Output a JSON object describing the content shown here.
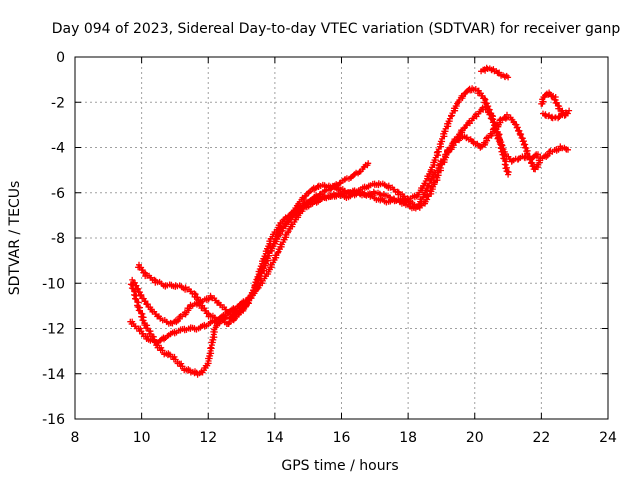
{
  "chart_data": {
    "type": "scatter",
    "title": "Day 094 of 2023, Sidereal Day-to-day VTEC variation (SDTVAR) for receiver ganp",
    "xlabel": "GPS time / hours",
    "ylabel": "SDTVAR / TECUs",
    "xlim": [
      8,
      24
    ],
    "ylim": [
      -16,
      0
    ],
    "xticks": [
      8,
      10,
      12,
      14,
      16,
      18,
      20,
      22,
      24
    ],
    "yticks": [
      0,
      -2,
      -4,
      -6,
      -8,
      -10,
      -12,
      -14,
      -16
    ],
    "grid": true,
    "marker": "+",
    "color": "#ff0000",
    "series": [
      {
        "points": [
          [
            9.75,
            -9.9
          ],
          [
            10.0,
            -10.6
          ],
          [
            10.3,
            -11.2
          ],
          [
            10.6,
            -11.6
          ],
          [
            10.9,
            -11.8
          ],
          [
            11.2,
            -11.5
          ],
          [
            11.5,
            -11.0
          ],
          [
            11.8,
            -10.8
          ],
          [
            12.1,
            -10.6
          ],
          [
            12.4,
            -11.0
          ],
          [
            12.7,
            -11.4
          ],
          [
            13.0,
            -11.0
          ],
          [
            13.3,
            -10.6
          ],
          [
            13.6,
            -9.6
          ],
          [
            13.9,
            -8.4
          ],
          [
            14.2,
            -7.6
          ],
          [
            14.5,
            -7.1
          ],
          [
            14.8,
            -6.7
          ],
          [
            15.1,
            -6.5
          ],
          [
            15.5,
            -6.2
          ],
          [
            15.8,
            -6.1
          ],
          [
            16.1,
            -6.0
          ],
          [
            16.4,
            -6.0
          ],
          [
            16.7,
            -6.1
          ],
          [
            17.0,
            -6.0
          ],
          [
            17.3,
            -6.1
          ],
          [
            17.6,
            -6.3
          ],
          [
            17.9,
            -6.5
          ],
          [
            18.2,
            -6.7
          ],
          [
            18.4,
            -6.6
          ],
          [
            18.6,
            -6.2
          ],
          [
            18.8,
            -5.6
          ],
          [
            19.0,
            -4.8
          ],
          [
            19.2,
            -4.2
          ],
          [
            19.4,
            -3.8
          ],
          [
            19.6,
            -3.5
          ],
          [
            19.8,
            -3.6
          ],
          [
            20.0,
            -3.8
          ],
          [
            20.2,
            -4.0
          ],
          [
            20.4,
            -3.6
          ],
          [
            20.6,
            -3.2
          ],
          [
            20.8,
            -2.8
          ],
          [
            21.0,
            -2.6
          ],
          [
            21.2,
            -2.9
          ],
          [
            21.4,
            -3.5
          ],
          [
            21.6,
            -4.3
          ],
          [
            21.8,
            -5.0
          ],
          [
            22.0,
            -4.5
          ],
          [
            22.3,
            -4.2
          ],
          [
            22.6,
            -4.0
          ],
          [
            22.8,
            -4.1
          ]
        ]
      },
      {
        "points": [
          [
            9.65,
            -11.7
          ],
          [
            9.9,
            -12.0
          ],
          [
            10.2,
            -12.5
          ],
          [
            10.5,
            -12.6
          ],
          [
            10.8,
            -12.3
          ],
          [
            11.1,
            -12.1
          ],
          [
            11.4,
            -12.0
          ],
          [
            11.7,
            -12.0
          ],
          [
            12.0,
            -11.8
          ],
          [
            12.3,
            -11.6
          ],
          [
            12.6,
            -11.3
          ],
          [
            12.9,
            -11.0
          ],
          [
            13.2,
            -10.7
          ],
          [
            13.5,
            -10.2
          ],
          [
            13.8,
            -9.5
          ],
          [
            14.1,
            -8.6
          ],
          [
            14.4,
            -7.7
          ],
          [
            14.7,
            -7.0
          ],
          [
            15.0,
            -6.4
          ],
          [
            15.3,
            -6.2
          ],
          [
            15.6,
            -6.2
          ],
          [
            15.9,
            -6.1
          ],
          [
            16.2,
            -6.2
          ],
          [
            16.5,
            -6.0
          ],
          [
            16.8,
            -6.1
          ],
          [
            17.1,
            -6.3
          ],
          [
            17.4,
            -6.4
          ],
          [
            17.7,
            -6.3
          ],
          [
            18.0,
            -6.4
          ],
          [
            18.3,
            -6.6
          ],
          [
            18.5,
            -6.0
          ],
          [
            18.7,
            -5.4
          ],
          [
            18.9,
            -4.9
          ],
          [
            19.1,
            -4.4
          ],
          [
            19.3,
            -3.9
          ],
          [
            19.5,
            -3.5
          ],
          [
            19.7,
            -3.1
          ],
          [
            19.9,
            -2.8
          ],
          [
            20.1,
            -2.5
          ],
          [
            20.3,
            -2.2
          ],
          [
            20.5,
            -2.6
          ],
          [
            20.7,
            -3.4
          ],
          [
            20.9,
            -4.6
          ],
          [
            21.0,
            -5.2
          ]
        ]
      },
      {
        "points": [
          [
            9.7,
            -10.0
          ],
          [
            9.9,
            -11.0
          ],
          [
            10.1,
            -11.8
          ],
          [
            10.3,
            -12.3
          ],
          [
            10.5,
            -12.8
          ],
          [
            10.7,
            -13.1
          ],
          [
            10.9,
            -13.2
          ],
          [
            11.1,
            -13.5
          ],
          [
            11.3,
            -13.8
          ],
          [
            11.5,
            -13.9
          ],
          [
            11.7,
            -14.0
          ],
          [
            11.85,
            -13.9
          ],
          [
            12.0,
            -13.5
          ],
          [
            12.1,
            -12.8
          ],
          [
            12.2,
            -12.0
          ],
          [
            12.4,
            -11.6
          ],
          [
            12.7,
            -11.5
          ],
          [
            13.0,
            -11.2
          ],
          [
            13.3,
            -10.6
          ],
          [
            13.6,
            -9.2
          ],
          [
            13.9,
            -8.0
          ],
          [
            14.2,
            -7.3
          ],
          [
            14.5,
            -6.9
          ],
          [
            14.8,
            -6.6
          ],
          [
            15.1,
            -6.3
          ],
          [
            15.4,
            -6.0
          ],
          [
            15.7,
            -5.8
          ],
          [
            16.0,
            -5.5
          ],
          [
            16.3,
            -5.3
          ],
          [
            16.6,
            -5.0
          ],
          [
            16.8,
            -4.7
          ]
        ]
      },
      {
        "points": [
          [
            9.9,
            -9.2
          ],
          [
            10.1,
            -9.6
          ],
          [
            10.4,
            -9.9
          ],
          [
            10.7,
            -10.1
          ],
          [
            11.0,
            -10.1
          ],
          [
            11.3,
            -10.2
          ],
          [
            11.6,
            -10.5
          ],
          [
            11.8,
            -11.0
          ],
          [
            12.0,
            -11.4
          ],
          [
            12.3,
            -11.6
          ],
          [
            12.6,
            -11.8
          ],
          [
            12.9,
            -11.4
          ],
          [
            13.2,
            -10.9
          ],
          [
            13.5,
            -9.8
          ],
          [
            13.8,
            -8.8
          ],
          [
            14.1,
            -7.9
          ],
          [
            14.4,
            -7.2
          ],
          [
            14.7,
            -6.5
          ],
          [
            15.0,
            -6.0
          ],
          [
            15.3,
            -5.7
          ],
          [
            15.6,
            -5.7
          ],
          [
            15.9,
            -5.8
          ],
          [
            16.2,
            -6.0
          ],
          [
            16.5,
            -5.9
          ],
          [
            16.8,
            -5.7
          ],
          [
            17.1,
            -5.6
          ],
          [
            17.4,
            -5.7
          ],
          [
            17.7,
            -6.0
          ],
          [
            18.0,
            -6.3
          ],
          [
            18.3,
            -6.1
          ],
          [
            18.5,
            -5.6
          ],
          [
            18.7,
            -5.0
          ],
          [
            18.9,
            -4.2
          ],
          [
            19.1,
            -3.3
          ],
          [
            19.3,
            -2.6
          ],
          [
            19.5,
            -2.0
          ],
          [
            19.7,
            -1.6
          ],
          [
            19.9,
            -1.4
          ],
          [
            20.1,
            -1.5
          ],
          [
            20.3,
            -1.9
          ],
          [
            20.5,
            -2.6
          ],
          [
            20.7,
            -3.5
          ],
          [
            20.9,
            -4.3
          ],
          [
            21.1,
            -4.6
          ],
          [
            21.3,
            -4.5
          ],
          [
            21.5,
            -4.4
          ],
          [
            21.7,
            -4.5
          ],
          [
            21.9,
            -4.3
          ]
        ]
      },
      {
        "points": [
          [
            20.2,
            -0.6
          ],
          [
            20.4,
            -0.5
          ],
          [
            20.6,
            -0.6
          ],
          [
            20.8,
            -0.8
          ],
          [
            21.0,
            -0.9
          ]
        ]
      },
      {
        "points": [
          [
            22.0,
            -2.1
          ],
          [
            22.1,
            -1.7
          ],
          [
            22.2,
            -1.6
          ],
          [
            22.4,
            -1.8
          ],
          [
            22.5,
            -2.2
          ],
          [
            22.6,
            -2.4
          ],
          [
            22.7,
            -2.6
          ],
          [
            22.8,
            -2.4
          ],
          [
            22.6,
            -2.6
          ],
          [
            22.4,
            -2.7
          ],
          [
            22.2,
            -2.6
          ],
          [
            22.05,
            -2.5
          ]
        ]
      }
    ]
  }
}
